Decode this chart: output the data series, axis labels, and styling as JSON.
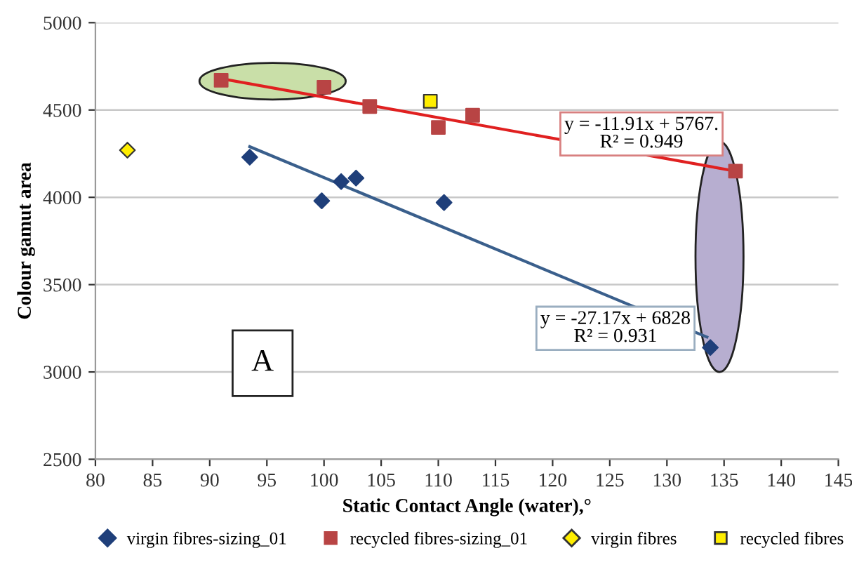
{
  "chart_data": {
    "type": "scatter",
    "xlabel": "Static Contact Angle (water),°",
    "ylabel": "Colour gamut area",
    "xlim": [
      80,
      145
    ],
    "xticks": [
      80,
      85,
      90,
      95,
      100,
      105,
      110,
      115,
      120,
      125,
      130,
      135,
      140,
      145
    ],
    "ylim": [
      2500,
      5000
    ],
    "yticks": [
      2500,
      3000,
      3500,
      4000,
      4500,
      5000
    ],
    "grid": "y",
    "legend": "bottom",
    "series": [
      {
        "name": "virgin fibres-sizing_01",
        "marker": "diamond",
        "color": "#1f3f7a",
        "x": [
          93.5,
          99.8,
          101.5,
          102.8,
          110.5,
          133.8
        ],
        "values": [
          4230,
          3980,
          4090,
          4110,
          3970,
          3140
        ]
      },
      {
        "name": "recycled fibres-sizing_01",
        "marker": "square",
        "color": "#b84444",
        "x": [
          91,
          100,
          104,
          110,
          113,
          136
        ],
        "values": [
          4670,
          4630,
          4520,
          4400,
          4470,
          4150
        ]
      },
      {
        "name": "virgin fibres",
        "marker": "diamond",
        "color": "#ffee00",
        "x": [
          82.8
        ],
        "values": [
          4270
        ]
      },
      {
        "name": "recycled fibres",
        "marker": "square",
        "color": "#ffee00",
        "x": [
          109.3
        ],
        "values": [
          4550
        ]
      },
      {
        "type": "line",
        "color": "#3a5f8c",
        "x": [
          93.5,
          133.5
        ],
        "values": [
          4290,
          3200
        ]
      },
      {
        "type": "line",
        "color": "#e02020",
        "x": [
          91,
          136
        ],
        "values": [
          4680,
          4150
        ]
      }
    ],
    "annotations": [
      "y = -11.91x + 5767.\nR² = 0.949",
      "y = -27.17x + 6828\nR² = 0.931",
      "A"
    ]
  }
}
